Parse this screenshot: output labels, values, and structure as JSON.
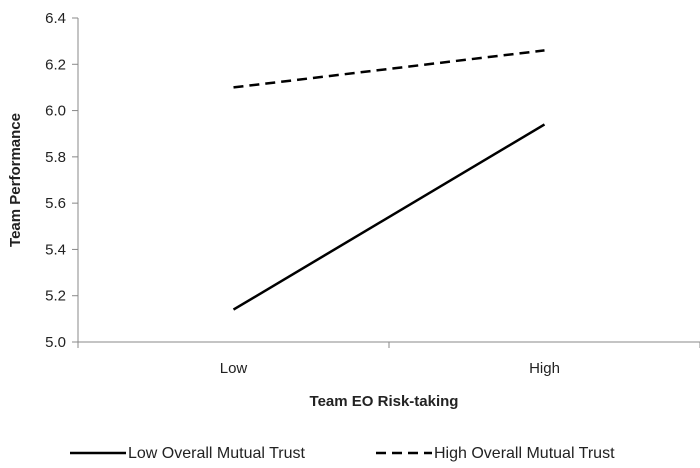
{
  "chart_data": {
    "type": "line",
    "categories": [
      "Low",
      "High"
    ],
    "series": [
      {
        "name": "Low Overall Mutual Trust",
        "values": [
          5.14,
          5.94
        ],
        "style": "solid",
        "color": "#000000"
      },
      {
        "name": "High Overall Mutual Trust",
        "values": [
          6.1,
          6.26
        ],
        "style": "dashed",
        "color": "#000000"
      }
    ],
    "xlabel": "Team EO Risk-taking",
    "ylabel": "Team Performance",
    "ylim": [
      5.0,
      6.4
    ],
    "yticks": [
      "5.0",
      "5.2",
      "5.4",
      "5.6",
      "5.8",
      "6.0",
      "6.2",
      "6.4"
    ],
    "grid": false,
    "legend": "bottom"
  }
}
